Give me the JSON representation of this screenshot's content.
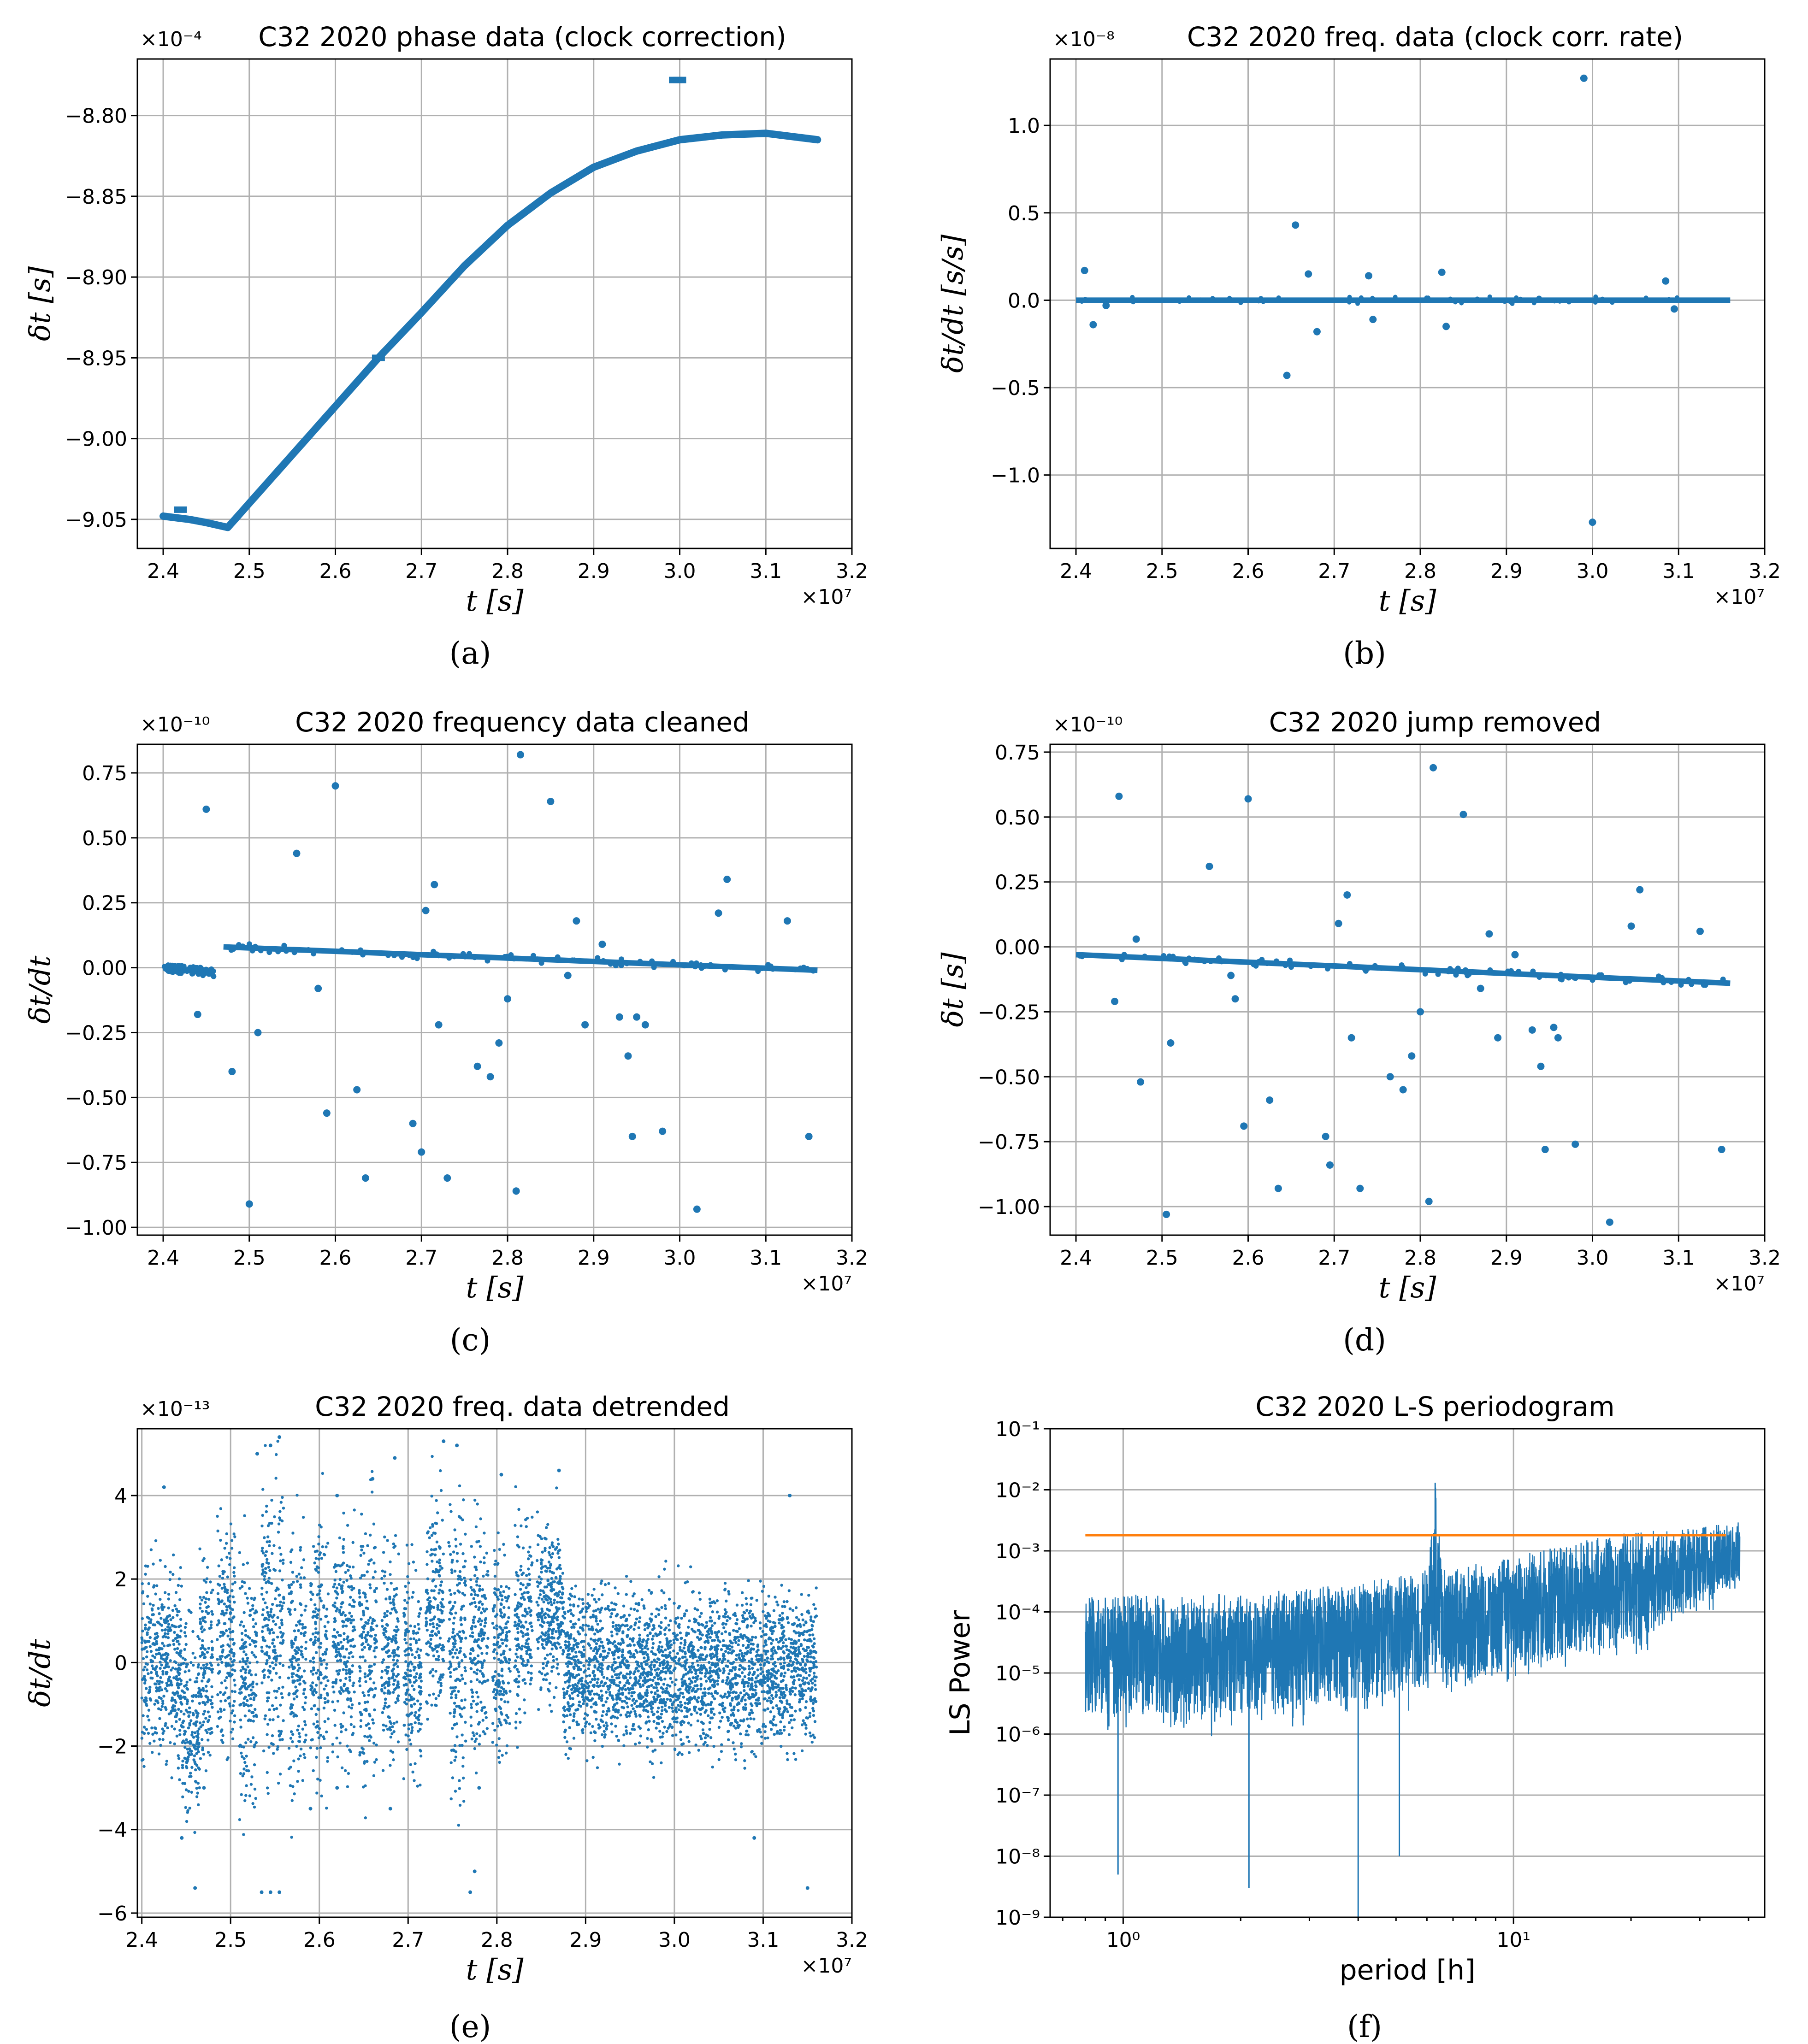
{
  "chart_data": [
    {
      "id": "a",
      "type": "scatter",
      "title": "C32 2020 phase data (clock correction)",
      "xlabel": "t [s]",
      "ylabel": "δt [s]",
      "x_multiplier": "×10⁷",
      "y_multiplier": "×10⁻⁴",
      "xlim": [
        2.37,
        3.2
      ],
      "ylim": [
        -9.068,
        -8.765
      ],
      "x_ticks": [
        "2.4",
        "2.5",
        "2.6",
        "2.7",
        "2.8",
        "2.9",
        "3.0",
        "3.1",
        "3.2"
      ],
      "y_ticks": [
        "-9.05",
        "-9.00",
        "-8.95",
        "-8.90",
        "-8.85",
        "-8.80"
      ],
      "grid": true,
      "color": "#1f77b4",
      "series_curve": [
        [
          2.4,
          -9.048
        ],
        [
          2.43,
          -9.05
        ],
        [
          2.45,
          -9.052
        ],
        [
          2.475,
          -9.055
        ],
        [
          2.5,
          -9.04
        ],
        [
          2.55,
          -9.01
        ],
        [
          2.6,
          -8.98
        ],
        [
          2.65,
          -8.95
        ],
        [
          2.7,
          -8.922
        ],
        [
          2.75,
          -8.893
        ],
        [
          2.8,
          -8.868
        ],
        [
          2.85,
          -8.848
        ],
        [
          2.9,
          -8.832
        ],
        [
          2.95,
          -8.822
        ],
        [
          3.0,
          -8.815
        ],
        [
          3.05,
          -8.812
        ],
        [
          3.1,
          -8.811
        ],
        [
          3.16,
          -8.815
        ]
      ],
      "outliers": [
        [
          2.995,
          -8.778
        ],
        [
          3.0,
          -8.778
        ],
        [
          2.42,
          -9.044
        ],
        [
          2.65,
          -8.95
        ]
      ],
      "caption": "(a)"
    },
    {
      "id": "b",
      "type": "scatter",
      "title": "C32 2020 freq. data (clock corr. rate)",
      "xlabel": "t [s]",
      "ylabel": "δt/dt  [s/s]",
      "x_multiplier": "×10⁷",
      "y_multiplier": "×10⁻⁸",
      "xlim": [
        2.37,
        3.2
      ],
      "ylim": [
        -1.42,
        1.38
      ],
      "x_ticks": [
        "2.4",
        "2.5",
        "2.6",
        "2.7",
        "2.8",
        "2.9",
        "3.0",
        "3.1",
        "3.2"
      ],
      "y_ticks": [
        "-1.0",
        "-0.5",
        "0.0",
        "0.5",
        "1.0"
      ],
      "grid": true,
      "color": "#1f77b4",
      "baseline": [
        [
          2.4,
          0.0
        ],
        [
          3.16,
          0.0
        ]
      ],
      "points": [
        [
          2.41,
          0.17
        ],
        [
          2.42,
          -0.14
        ],
        [
          2.435,
          -0.03
        ],
        [
          2.645,
          -0.43
        ],
        [
          2.655,
          0.43
        ],
        [
          2.67,
          0.15
        ],
        [
          2.68,
          -0.18
        ],
        [
          2.74,
          0.14
        ],
        [
          2.745,
          -0.11
        ],
        [
          2.825,
          0.16
        ],
        [
          2.83,
          -0.15
        ],
        [
          2.99,
          1.27
        ],
        [
          3.0,
          -1.27
        ],
        [
          3.085,
          0.11
        ],
        [
          3.095,
          -0.05
        ]
      ],
      "caption": "(b)"
    },
    {
      "id": "c",
      "type": "scatter",
      "title": "C32 2020 frequency data cleaned",
      "xlabel": "t [s]",
      "ylabel": "δt/dt",
      "x_multiplier": "×10⁷",
      "y_multiplier": "×10⁻¹⁰",
      "xlim": [
        2.37,
        3.2
      ],
      "ylim": [
        -1.03,
        0.86
      ],
      "x_ticks": [
        "2.4",
        "2.5",
        "2.6",
        "2.7",
        "2.8",
        "2.9",
        "3.0",
        "3.1",
        "3.2"
      ],
      "y_ticks": [
        "-1.00",
        "-0.75",
        "-0.50",
        "-0.25",
        "0.00",
        "0.25",
        "0.50",
        "0.75"
      ],
      "grid": true,
      "color": "#1f77b4",
      "segments": [
        [
          [
            2.4,
            0.0
          ],
          [
            2.46,
            -0.02
          ]
        ],
        [
          [
            2.47,
            0.08
          ],
          [
            3.16,
            -0.01
          ]
        ]
      ],
      "points": [
        [
          2.44,
          -0.18
        ],
        [
          2.45,
          0.61
        ],
        [
          2.48,
          -0.4
        ],
        [
          2.5,
          -0.91
        ],
        [
          2.51,
          -0.25
        ],
        [
          2.555,
          0.44
        ],
        [
          2.58,
          -0.08
        ],
        [
          2.59,
          -0.56
        ],
        [
          2.6,
          0.7
        ],
        [
          2.625,
          -0.47
        ],
        [
          2.635,
          -0.81
        ],
        [
          2.69,
          -0.6
        ],
        [
          2.7,
          -0.71
        ],
        [
          2.705,
          0.22
        ],
        [
          2.715,
          0.32
        ],
        [
          2.72,
          -0.22
        ],
        [
          2.73,
          -0.81
        ],
        [
          2.765,
          -0.38
        ],
        [
          2.78,
          -0.42
        ],
        [
          2.79,
          -0.29
        ],
        [
          2.8,
          -0.12
        ],
        [
          2.81,
          -0.86
        ],
        [
          2.815,
          0.82
        ],
        [
          2.85,
          0.64
        ],
        [
          2.87,
          -0.03
        ],
        [
          2.88,
          0.18
        ],
        [
          2.89,
          -0.22
        ],
        [
          2.91,
          0.09
        ],
        [
          2.93,
          -0.19
        ],
        [
          2.94,
          -0.34
        ],
        [
          2.945,
          -0.65
        ],
        [
          2.95,
          -0.19
        ],
        [
          2.96,
          -0.22
        ],
        [
          2.98,
          -0.63
        ],
        [
          3.02,
          -0.93
        ],
        [
          3.045,
          0.21
        ],
        [
          3.055,
          0.34
        ],
        [
          3.125,
          0.18
        ],
        [
          3.15,
          -0.65
        ]
      ],
      "caption": "(c)"
    },
    {
      "id": "d",
      "type": "scatter",
      "title": "C32  2020  jump  removed",
      "xlabel": "t [s]",
      "ylabel": "δt [s]",
      "x_multiplier": "×10⁷",
      "y_multiplier": "×10⁻¹⁰",
      "xlim": [
        2.37,
        3.2
      ],
      "ylim": [
        -1.11,
        0.78
      ],
      "x_ticks": [
        "2.4",
        "2.5",
        "2.6",
        "2.7",
        "2.8",
        "2.9",
        "3.0",
        "3.1",
        "3.2"
      ],
      "y_ticks": [
        "-1.00",
        "-0.75",
        "-0.50",
        "-0.25",
        "0.00",
        "0.25",
        "0.50",
        "0.75"
      ],
      "grid": true,
      "color": "#1f77b4",
      "segments": [
        [
          [
            2.4,
            -0.03
          ],
          [
            3.16,
            -0.14
          ]
        ]
      ],
      "points": [
        [
          2.445,
          -0.21
        ],
        [
          2.45,
          0.58
        ],
        [
          2.47,
          0.03
        ],
        [
          2.475,
          -0.52
        ],
        [
          2.505,
          -1.03
        ],
        [
          2.51,
          -0.37
        ],
        [
          2.555,
          0.31
        ],
        [
          2.58,
          -0.11
        ],
        [
          2.585,
          -0.2
        ],
        [
          2.595,
          -0.69
        ],
        [
          2.6,
          0.57
        ],
        [
          2.625,
          -0.59
        ],
        [
          2.635,
          -0.93
        ],
        [
          2.69,
          -0.73
        ],
        [
          2.695,
          -0.84
        ],
        [
          2.705,
          0.09
        ],
        [
          2.715,
          0.2
        ],
        [
          2.72,
          -0.35
        ],
        [
          2.73,
          -0.93
        ],
        [
          2.765,
          -0.5
        ],
        [
          2.78,
          -0.55
        ],
        [
          2.79,
          -0.42
        ],
        [
          2.8,
          -0.25
        ],
        [
          2.81,
          -0.98
        ],
        [
          2.815,
          0.69
        ],
        [
          2.85,
          0.51
        ],
        [
          2.87,
          -0.16
        ],
        [
          2.88,
          0.05
        ],
        [
          2.89,
          -0.35
        ],
        [
          2.91,
          -0.03
        ],
        [
          2.93,
          -0.32
        ],
        [
          2.94,
          -0.46
        ],
        [
          2.945,
          -0.78
        ],
        [
          2.955,
          -0.31
        ],
        [
          2.96,
          -0.35
        ],
        [
          2.98,
          -0.76
        ],
        [
          3.02,
          -1.06
        ],
        [
          3.045,
          0.08
        ],
        [
          3.055,
          0.22
        ],
        [
          3.125,
          0.06
        ],
        [
          3.15,
          -0.78
        ]
      ],
      "caption": "(d)"
    },
    {
      "id": "e",
      "type": "scatter",
      "title": "C32 2020 freq. data detrended",
      "xlabel": "t [s]",
      "ylabel": "δt/dt",
      "x_multiplier": "×10⁷",
      "y_multiplier": "×10⁻¹³",
      "xlim": [
        2.395,
        3.2
      ],
      "ylim": [
        -6.1,
        5.6
      ],
      "x_ticks": [
        "2.4",
        "2.5",
        "2.6",
        "2.7",
        "2.8",
        "2.9",
        "3.0",
        "3.1",
        "3.2"
      ],
      "y_ticks": [
        "-6",
        "-4",
        "-2",
        "0",
        "2",
        "4"
      ],
      "grid": true,
      "color": "#1f77b4",
      "bands": [
        {
          "x0": 2.4,
          "x1": 2.445,
          "ymin": -2.0,
          "ymax": 2.0
        },
        {
          "x0": 2.445,
          "x1": 2.465,
          "ymin": -3.5,
          "ymax": 0.5
        },
        {
          "x0": 2.465,
          "x1": 2.48,
          "ymin": -2.0,
          "ymax": 2.0
        },
        {
          "x0": 2.485,
          "x1": 2.505,
          "ymin": -2.0,
          "ymax": 3.5
        },
        {
          "x0": 2.51,
          "x1": 2.53,
          "ymin": -3.0,
          "ymax": 2.0
        },
        {
          "x0": 2.535,
          "x1": 2.56,
          "ymin": -2.0,
          "ymax": 4.0
        },
        {
          "x0": 2.565,
          "x1": 2.585,
          "ymin": -3.0,
          "ymax": 2.5
        },
        {
          "x0": 2.59,
          "x1": 2.61,
          "ymin": -2.5,
          "ymax": 3.0
        },
        {
          "x0": 2.615,
          "x1": 2.64,
          "ymin": -2.0,
          "ymax": 3.0
        },
        {
          "x0": 2.645,
          "x1": 2.665,
          "ymin": -2.5,
          "ymax": 3.0
        },
        {
          "x0": 2.67,
          "x1": 2.69,
          "ymin": -2.0,
          "ymax": 2.5
        },
        {
          "x0": 2.695,
          "x1": 2.715,
          "ymin": -2.5,
          "ymax": 2.0
        },
        {
          "x0": 2.72,
          "x1": 2.74,
          "ymin": -1.0,
          "ymax": 3.5
        },
        {
          "x0": 2.745,
          "x1": 2.765,
          "ymin": -2.5,
          "ymax": 3.5
        },
        {
          "x0": 2.77,
          "x1": 2.79,
          "ymin": -2.0,
          "ymax": 3.0
        },
        {
          "x0": 2.795,
          "x1": 2.815,
          "ymin": -2.0,
          "ymax": 2.5
        },
        {
          "x0": 2.82,
          "x1": 2.84,
          "ymin": -1.0,
          "ymax": 3.0
        },
        {
          "x0": 2.845,
          "x1": 2.875,
          "ymin": -0.5,
          "ymax": 3.0
        },
        {
          "x0": 2.875,
          "x1": 3.16,
          "ymin": -1.8,
          "ymax": 1.5
        }
      ],
      "points": [
        [
          2.425,
          4.2
        ],
        [
          2.46,
          -5.4
        ],
        [
          2.53,
          5.0
        ],
        [
          2.545,
          5.2
        ],
        [
          2.555,
          5.4
        ],
        [
          2.535,
          -5.5
        ],
        [
          2.545,
          -5.5
        ],
        [
          2.555,
          -5.5
        ],
        [
          2.62,
          4.0
        ],
        [
          2.66,
          4.4
        ],
        [
          2.685,
          4.9
        ],
        [
          2.74,
          5.3
        ],
        [
          2.755,
          5.2
        ],
        [
          2.77,
          -5.5
        ],
        [
          2.775,
          -5.0
        ],
        [
          2.805,
          4.5
        ],
        [
          2.87,
          4.6
        ],
        [
          3.13,
          4.0
        ],
        [
          3.15,
          -5.4
        ],
        [
          3.09,
          -4.2
        ],
        [
          2.445,
          -4.2
        ],
        [
          2.47,
          -3.0
        ],
        [
          2.62,
          -3.0
        ],
        [
          2.68,
          -3.5
        ],
        [
          2.78,
          -3.0
        ],
        [
          2.59,
          -3.5
        ]
      ],
      "caption": "(e)"
    },
    {
      "id": "f",
      "type": "line",
      "title": "C32 2020 L-S periodogram",
      "xlabel": "period [h]",
      "ylabel": "LS Power",
      "xscale": "log",
      "yscale": "log",
      "xlim": [
        0.65,
        44
      ],
      "ylim": [
        1e-09,
        0.1
      ],
      "x_ticks": [
        {
          "v": 1,
          "label": "10⁰"
        },
        {
          "v": 10,
          "label": "10¹"
        }
      ],
      "y_ticks": [
        {
          "v": 1e-09,
          "label": "10⁻⁹"
        },
        {
          "v": 1e-08,
          "label": "10⁻⁸"
        },
        {
          "v": 1e-07,
          "label": "10⁻⁷"
        },
        {
          "v": 1e-06,
          "label": "10⁻⁶"
        },
        {
          "v": 1e-05,
          "label": "10⁻⁵"
        },
        {
          "v": 0.0001,
          "label": "10⁻⁴"
        },
        {
          "v": 0.001,
          "label": "10⁻³"
        },
        {
          "v": 0.01,
          "label": "10⁻²"
        },
        {
          "v": 0.1,
          "label": "10⁻¹"
        }
      ],
      "grid": true,
      "series": [
        {
          "color": "#1f77b4",
          "x_range": [
            0.8,
            38
          ],
          "envelope_upper": [
            [
              0.8,
              0.0002
            ],
            [
              2,
              0.0002
            ],
            [
              4,
              0.0003
            ],
            [
              6,
              0.0005
            ],
            [
              6.3,
              0.013
            ],
            [
              6.6,
              0.0005
            ],
            [
              10,
              0.0008
            ],
            [
              15,
              0.0015
            ],
            [
              20,
              0.002
            ],
            [
              30,
              0.0025
            ],
            [
              38,
              0.003
            ]
          ],
          "envelope_lower": [
            [
              0.8,
              5e-08
            ],
            [
              2,
              5e-08
            ],
            [
              4,
              1e-07
            ],
            [
              10,
              3e-07
            ],
            [
              20,
              1e-06
            ],
            [
              38,
              5e-05
            ]
          ],
          "spikes": [
            [
              0.97,
              5e-09
            ],
            [
              2.1,
              3e-09
            ],
            [
              4.0,
              1e-09
            ],
            [
              5.1,
              1e-08
            ],
            [
              6.3,
              0.013
            ]
          ]
        },
        {
          "color": "#ff7f0e",
          "x_range": [
            0.8,
            35
          ],
          "value": 0.0018
        }
      ],
      "caption": "(f)"
    }
  ]
}
